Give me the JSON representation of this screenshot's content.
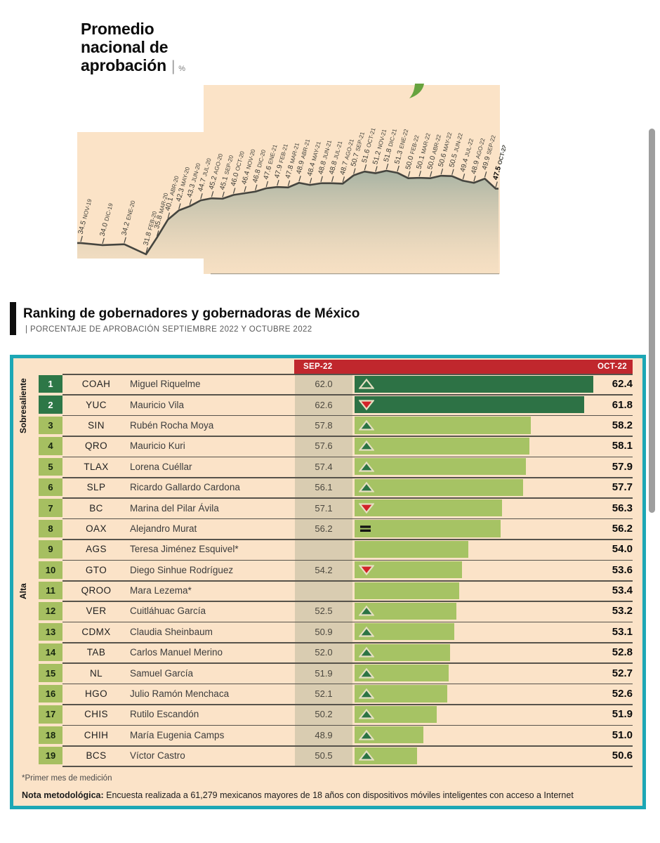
{
  "heading": {
    "lines": [
      "Promedio",
      "nacional de",
      "aprobación"
    ],
    "separator": "|",
    "unit": "%"
  },
  "colors": {
    "panel_background": "#fbe3c8",
    "teal_border": "#1da7b5",
    "header_red": "#c0272d",
    "dark_green": "#2d7245",
    "light_green": "#a6c364",
    "sep_column_strip": "#d9ccb1",
    "down_red": "#d2232a"
  },
  "chart_data": [
    {
      "type": "area",
      "title": "Promedio nacional de aprobación",
      "unit": "%",
      "grid": false,
      "ylim": [
        31.8,
        51.8
      ],
      "point_label_format": "value month, rotated -75deg, last point bold",
      "x": [
        "NOV-19",
        "DIC-19",
        "ENE-20",
        "FEB-20",
        "MAR-20",
        "ABR-20",
        "MAY-20",
        "JUN-20",
        "JUL-20",
        "AGO-20",
        "SEP-20",
        "OCT-20",
        "NOV-20",
        "DIC-20",
        "ENE-21",
        "FEB-21",
        "MAR-21",
        "ABR-21",
        "MAY-21",
        "JUN-21",
        "JUL-21",
        "AGO-21",
        "SEP-21",
        "OCT-21",
        "NOV-21",
        "DIC-21",
        "ENE-22",
        "FEB-22",
        "MAR-22",
        "ABR-22",
        "MAY-22",
        "JUN-22",
        "JUL-22",
        "AGO-22",
        "SEP-22",
        "OCT-22"
      ],
      "values": [
        34.5,
        34.0,
        34.2,
        31.8,
        35.8,
        40.1,
        42.3,
        43.3,
        44.7,
        45.2,
        45.1,
        46.0,
        46.4,
        46.8,
        47.6,
        47.9,
        47.8,
        48.9,
        48.4,
        48.8,
        48.8,
        48.7,
        50.7,
        51.6,
        51.2,
        51.8,
        51.3,
        50.0,
        50.1,
        50.0,
        50.6,
        50.5,
        49.4,
        48.9,
        49.9,
        47.5
      ]
    },
    {
      "type": "table",
      "title": "Ranking de gobernadores y gobernadoras de México",
      "subtitle": "| PORCENTAJE DE APROBACIÓN SEPTIEMBRE 2022 Y OCTUBRE 2022",
      "header_sep": "SEP-22",
      "header_oct": "OCT-22",
      "tier_labels": [
        "Sobresaliente",
        "Alta"
      ],
      "bar_scale": {
        "min": 46.4,
        "max": 62.4
      },
      "rows": [
        {
          "rank": 1,
          "state": "COAH",
          "name": "Miguel Riquelme",
          "sep": "62.0",
          "oct": "62.4",
          "trend": "up",
          "tier": "sobresaliente"
        },
        {
          "rank": 2,
          "state": "YUC",
          "name": "Mauricio Vila",
          "sep": "62.6",
          "oct": "61.8",
          "trend": "down",
          "tier": "sobresaliente"
        },
        {
          "rank": 3,
          "state": "SIN",
          "name": "Rubén Rocha Moya",
          "sep": "57.8",
          "oct": "58.2",
          "trend": "up",
          "tier": "alta"
        },
        {
          "rank": 4,
          "state": "QRO",
          "name": "Mauricio Kuri",
          "sep": "57.6",
          "oct": "58.1",
          "trend": "up",
          "tier": "alta"
        },
        {
          "rank": 5,
          "state": "TLAX",
          "name": "Lorena Cuéllar",
          "sep": "57.4",
          "oct": "57.9",
          "trend": "up",
          "tier": "alta"
        },
        {
          "rank": 6,
          "state": "SLP",
          "name": "Ricardo Gallardo Cardona",
          "sep": "56.1",
          "oct": "57.7",
          "trend": "up",
          "tier": "alta"
        },
        {
          "rank": 7,
          "state": "BC",
          "name": "Marina del Pilar Ávila",
          "sep": "57.1",
          "oct": "56.3",
          "trend": "down",
          "tier": "alta"
        },
        {
          "rank": 8,
          "state": "OAX",
          "name": "Alejandro Murat",
          "sep": "56.2",
          "oct": "56.2",
          "trend": "equal",
          "tier": "alta"
        },
        {
          "rank": 9,
          "state": "AGS",
          "name": "Teresa Jiménez Esquivel*",
          "sep": "",
          "oct": "54.0",
          "trend": "none",
          "tier": "alta"
        },
        {
          "rank": 10,
          "state": "GTO",
          "name": "Diego Sinhue Rodríguez",
          "sep": "54.2",
          "oct": "53.6",
          "trend": "down",
          "tier": "alta"
        },
        {
          "rank": 11,
          "state": "QROO",
          "name": "Mara Lezema*",
          "sep": "",
          "oct": "53.4",
          "trend": "none",
          "tier": "alta"
        },
        {
          "rank": 12,
          "state": "VER",
          "name": "Cuitláhuac García",
          "sep": "52.5",
          "oct": "53.2",
          "trend": "up",
          "tier": "alta"
        },
        {
          "rank": 13,
          "state": "CDMX",
          "name": "Claudia Sheinbaum",
          "sep": "50.9",
          "oct": "53.1",
          "trend": "up",
          "tier": "alta"
        },
        {
          "rank": 14,
          "state": "TAB",
          "name": "Carlos Manuel Merino",
          "sep": "52.0",
          "oct": "52.8",
          "trend": "up",
          "tier": "alta"
        },
        {
          "rank": 15,
          "state": "NL",
          "name": "Samuel García",
          "sep": "51.9",
          "oct": "52.7",
          "trend": "up",
          "tier": "alta"
        },
        {
          "rank": 16,
          "state": "HGO",
          "name": "Julio Ramón Menchaca",
          "sep": "52.1",
          "oct": "52.6",
          "trend": "up",
          "tier": "alta"
        },
        {
          "rank": 17,
          "state": "CHIS",
          "name": "Rutilo Escandón",
          "sep": "50.2",
          "oct": "51.9",
          "trend": "up",
          "tier": "alta"
        },
        {
          "rank": 18,
          "state": "CHIH",
          "name": "María Eugenia Camps",
          "sep": "48.9",
          "oct": "51.0",
          "trend": "up",
          "tier": "alta"
        },
        {
          "rank": 19,
          "state": "BCS",
          "name": "Víctor Castro",
          "sep": "50.5",
          "oct": "50.6",
          "trend": "up",
          "tier": "alta"
        }
      ],
      "footnote_first_measurement": "*Primer mes de medición",
      "note_label": "Nota metodológica:",
      "note_text": " Encuesta realizada a 61,279 mexicanos mayores de 18 años con dispositivos móviles inteligentes con acceso a Internet"
    }
  ]
}
